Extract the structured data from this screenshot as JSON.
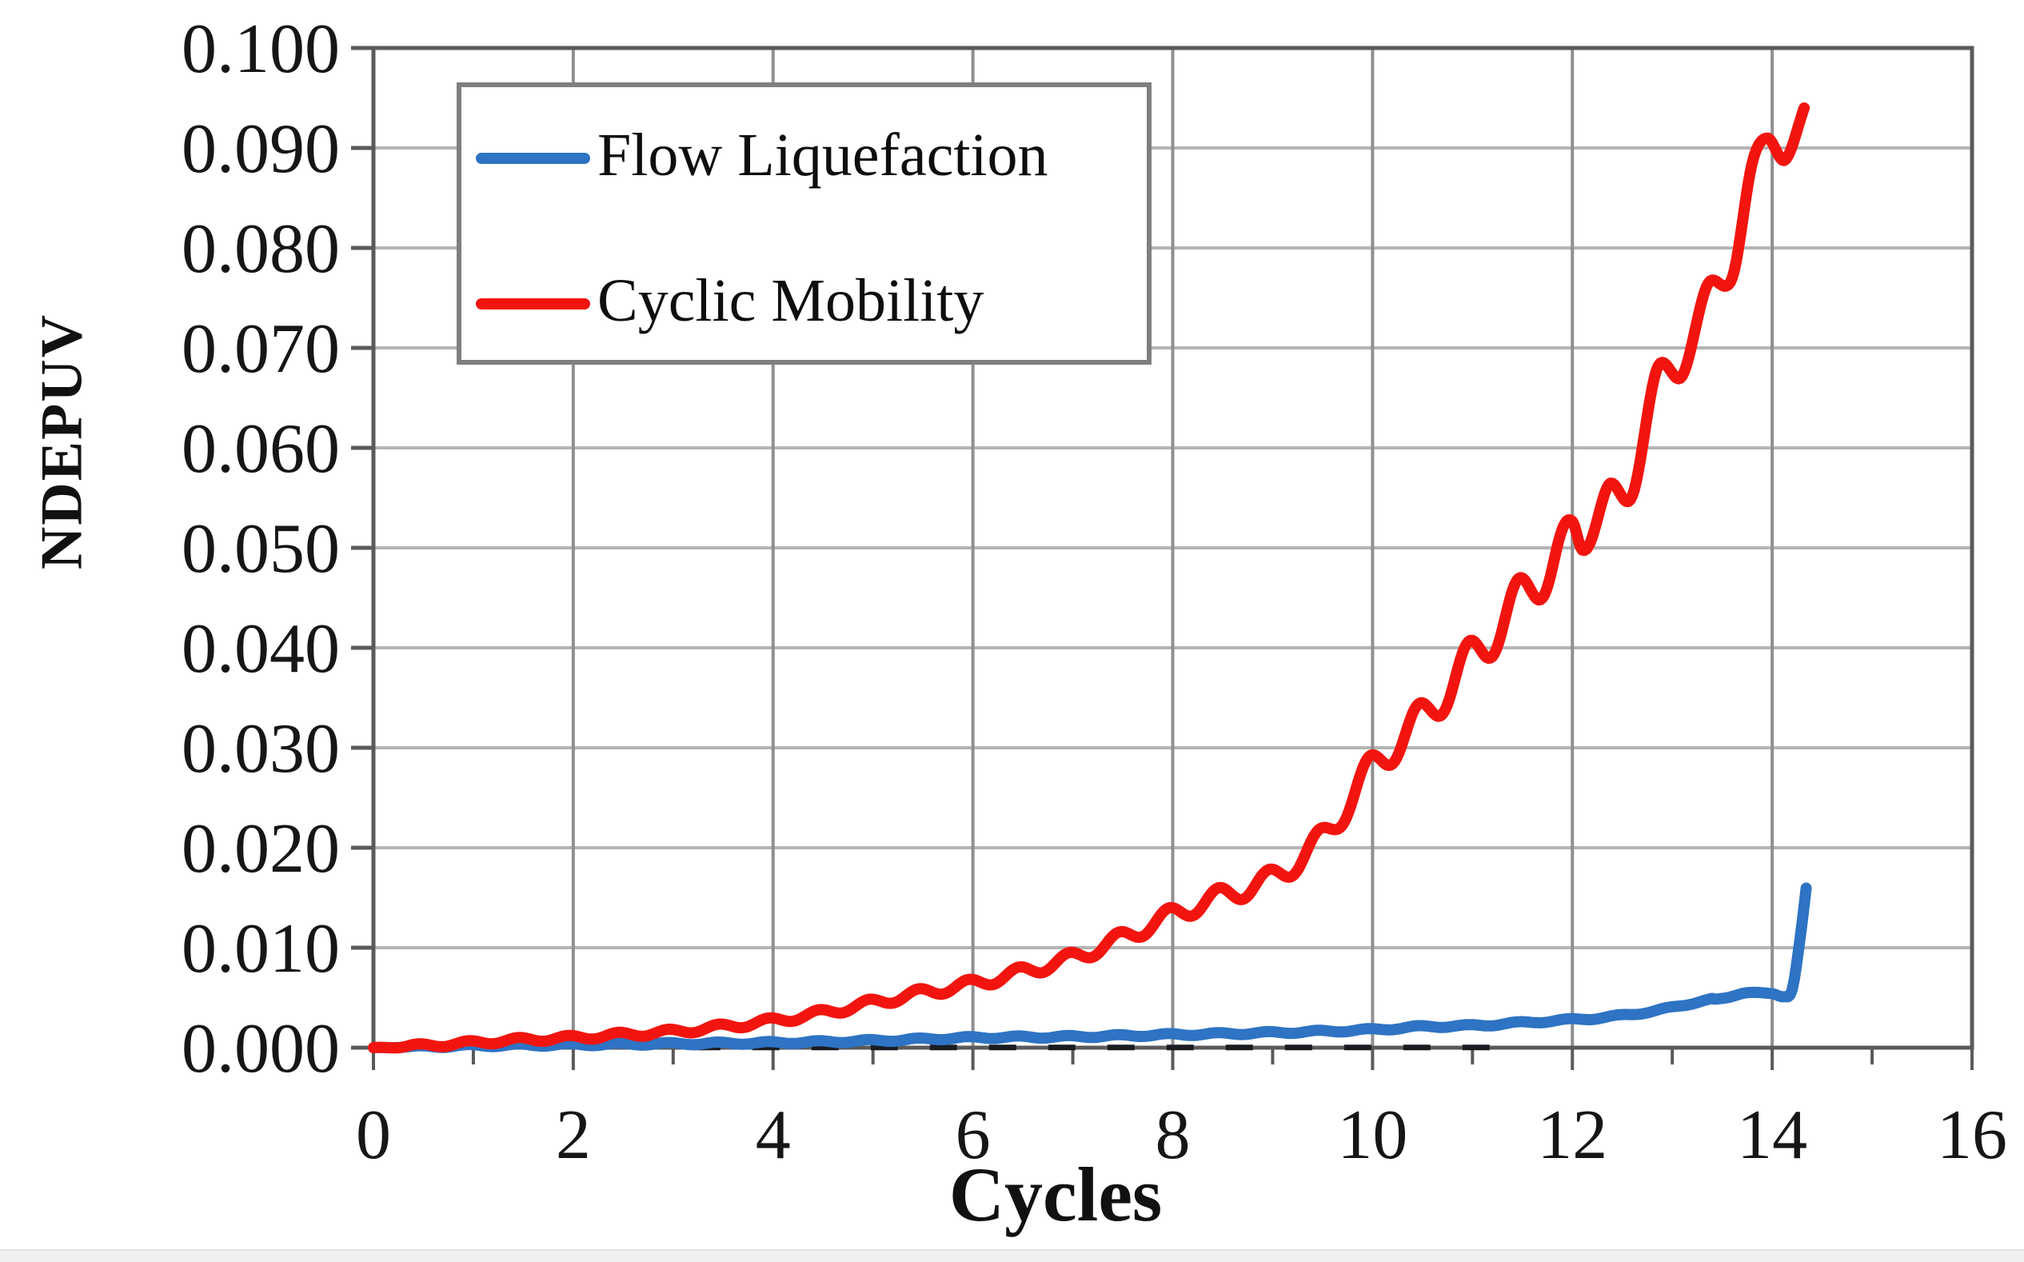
{
  "axes": {
    "x_title": "Cycles",
    "y_title": "NDEPUV"
  },
  "legend": {
    "items": [
      {
        "label": "Flow Liquefaction",
        "color": "#2e73c4"
      },
      {
        "label": "Cyclic Mobility",
        "color": "#f2150f"
      }
    ]
  },
  "chart_data": {
    "type": "line",
    "title": "",
    "xlabel": "Cycles",
    "ylabel": "NDEPUV",
    "xlim": [
      0,
      16
    ],
    "ylim": [
      0,
      0.1
    ],
    "x_tick_step": 2,
    "x_minor_tick_step": 1,
    "x_tick_labels": [
      "0",
      "2",
      "4",
      "6",
      "8",
      "10",
      "12",
      "14",
      "16"
    ],
    "y_tick_labels": [
      "0.000",
      "0.010",
      "0.020",
      "0.030",
      "0.040",
      "0.050",
      "0.060",
      "0.070",
      "0.080",
      "0.090",
      "0.100"
    ],
    "grid": "on",
    "legend_position": "upper-left",
    "colors": {
      "frame": "#5a5a5a",
      "grid_vertical": "#8f8f8f",
      "grid_horizontal": "#b5b5b5",
      "tick": "#5a5a5a",
      "zero_dash": "#1a1c22"
    },
    "series": [
      {
        "name": "Flow Liquefaction",
        "color": "#2e73c4",
        "points": [
          [
            0,
            0.0
          ],
          [
            1,
            0.0002
          ],
          [
            2,
            0.0003
          ],
          [
            3,
            0.0004
          ],
          [
            4,
            0.0005
          ],
          [
            5,
            0.0007
          ],
          [
            6,
            0.001
          ],
          [
            7,
            0.0011
          ],
          [
            8,
            0.0013
          ],
          [
            9,
            0.0015
          ],
          [
            10,
            0.0018
          ],
          [
            10.5,
            0.0021
          ],
          [
            11,
            0.0022
          ],
          [
            11.5,
            0.0025
          ],
          [
            12,
            0.0028
          ],
          [
            12.4,
            0.0031
          ],
          [
            12.7,
            0.0035
          ],
          [
            13,
            0.004
          ],
          [
            13.3,
            0.0047
          ],
          [
            13.55,
            0.005
          ],
          [
            13.75,
            0.0055
          ],
          [
            14,
            0.0054
          ],
          [
            14.12,
            0.0051
          ],
          [
            14.2,
            0.0058
          ],
          [
            14.28,
            0.011
          ],
          [
            14.35,
            0.0168
          ]
        ]
      },
      {
        "name": "Cyclic Mobility",
        "color": "#f2150f",
        "points": [
          [
            0,
            0.0
          ],
          [
            0.5,
            0.0002
          ],
          [
            1,
            0.0005
          ],
          [
            1.5,
            0.0008
          ],
          [
            2,
            0.001
          ],
          [
            2.5,
            0.0013
          ],
          [
            3,
            0.0016
          ],
          [
            3.5,
            0.0021
          ],
          [
            4,
            0.0027
          ],
          [
            4.5,
            0.0035
          ],
          [
            5,
            0.0045
          ],
          [
            5.5,
            0.0055
          ],
          [
            6,
            0.0064
          ],
          [
            6.5,
            0.0076
          ],
          [
            7,
            0.009
          ],
          [
            7.5,
            0.011
          ],
          [
            8,
            0.0133
          ],
          [
            8.5,
            0.0152
          ],
          [
            9,
            0.017
          ],
          [
            9.5,
            0.021
          ],
          [
            10,
            0.028
          ],
          [
            10.5,
            0.033
          ],
          [
            11,
            0.039
          ],
          [
            11.5,
            0.045
          ],
          [
            12,
            0.051
          ],
          [
            12.1,
            0.0503
          ],
          [
            12.35,
            0.0558
          ],
          [
            12.6,
            0.0552
          ],
          [
            12.85,
            0.068
          ],
          [
            13.1,
            0.0672
          ],
          [
            13.35,
            0.0763
          ],
          [
            13.6,
            0.077
          ],
          [
            13.8,
            0.0885
          ],
          [
            13.95,
            0.091
          ],
          [
            14.13,
            0.0888
          ],
          [
            14.32,
            0.094
          ]
        ]
      }
    ],
    "ripple": {
      "period": 0.5,
      "red_amp_base": 0.0002,
      "red_amp_frac": 0.05,
      "red_fade_start_x": 11.8,
      "blue_amp": 0.00012,
      "blue_fade_x": 13.4,
      "phase": 2.2
    },
    "zero_dash_line": {
      "x_start": 3.2,
      "x_end": 11.4,
      "value": 0.0001
    }
  }
}
